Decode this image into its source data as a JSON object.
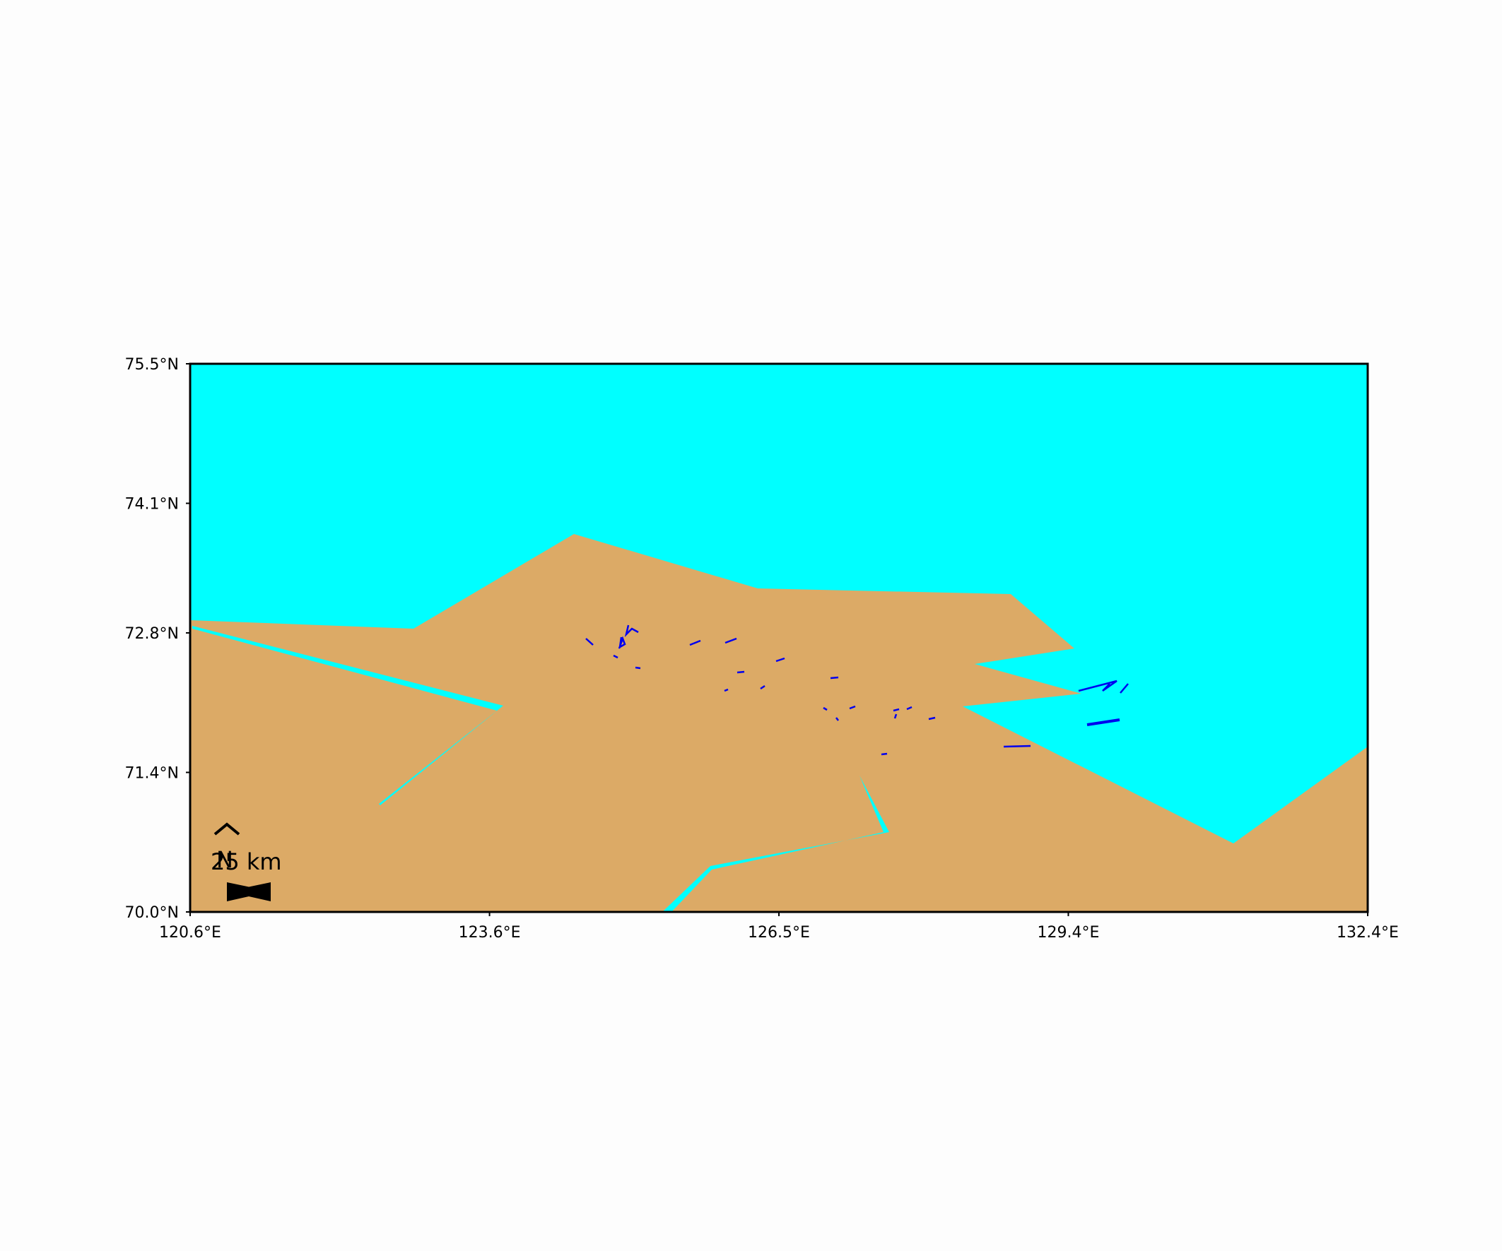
{
  "map": {
    "colors": {
      "sea": "#00ffff",
      "land": "#dcaa66",
      "rivers": "#0000ee",
      "frame": "#000000",
      "background": "#fdfdfd"
    },
    "extent": {
      "lon_min": 120.6,
      "lon_max": 132.4,
      "lat_min": 70.0,
      "lat_max": 75.5
    },
    "x_ticks": [
      {
        "value": 120.6,
        "label": "120.6°E"
      },
      {
        "value": 123.6,
        "label": "123.6°E"
      },
      {
        "value": 126.5,
        "label": "126.5°E"
      },
      {
        "value": 129.4,
        "label": "129.4°E"
      },
      {
        "value": 132.4,
        "label": "132.4°E"
      }
    ],
    "y_ticks": [
      {
        "value": 70.0,
        "label": "70.0°N"
      },
      {
        "value": 71.4,
        "label": "71.4°N"
      },
      {
        "value": 72.8,
        "label": "72.8°N"
      },
      {
        "value": 74.1,
        "label": "74.1°N"
      },
      {
        "value": 75.5,
        "label": "75.5°N"
      }
    ],
    "north_arrow": {
      "label": "N",
      "icon": "north-arrow-icon"
    },
    "scale_bar": {
      "label": "25 km"
    }
  }
}
